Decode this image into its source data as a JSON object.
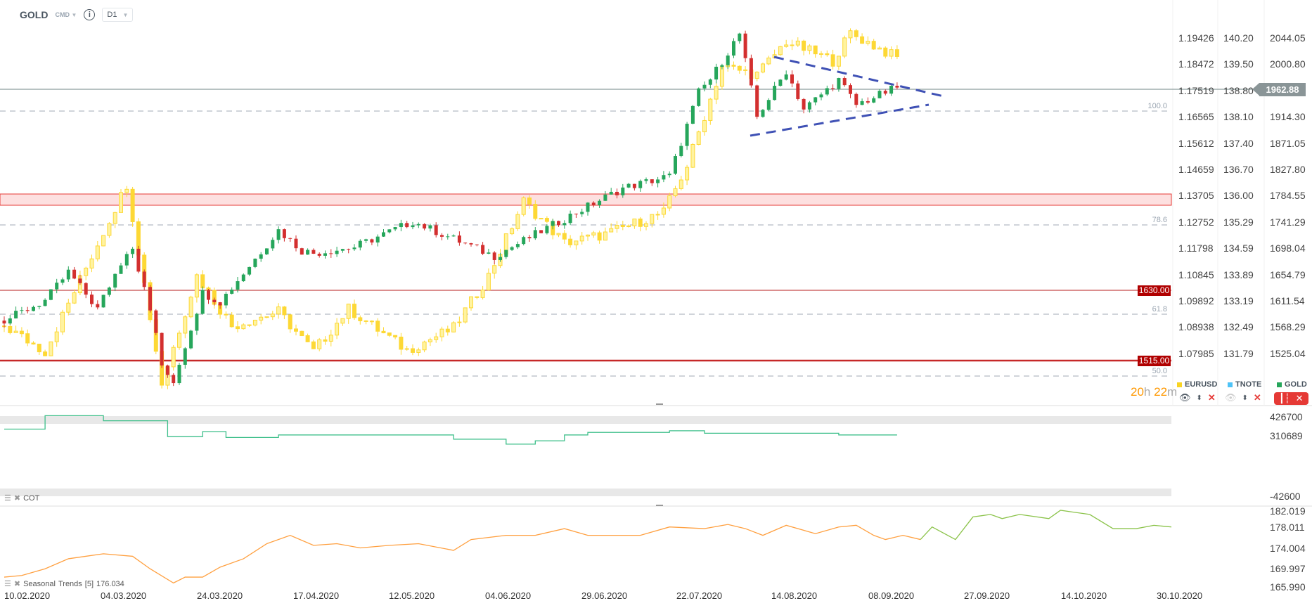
{
  "header": {
    "symbol": "GOLD",
    "market": "CMD",
    "info": "i",
    "timeframe": "D1"
  },
  "axes": {
    "eurusd": [
      "1.19426",
      "1.18472",
      "1.17519",
      "1.16565",
      "1.15612",
      "1.14659",
      "1.13705",
      "1.12752",
      "1.11798",
      "1.10845",
      "1.09892",
      "1.08938",
      "1.07985"
    ],
    "tnote": [
      "140.20",
      "139.50",
      "138.80",
      "138.10",
      "137.40",
      "136.70",
      "136.00",
      "135.29",
      "134.59",
      "133.89",
      "133.19",
      "132.49",
      "131.79"
    ],
    "gold": [
      "2044.05",
      "2000.80",
      "",
      "1914.30",
      "1871.05",
      "1827.80",
      "1784.55",
      "1741.29",
      "1698.04",
      "1654.79",
      "1611.54",
      "1568.29",
      "1525.04"
    ],
    "current_price": "1962.88",
    "cot": [
      "426700",
      "310689",
      "-42600"
    ],
    "seasonal": [
      "182.019",
      "178.011",
      "174.004",
      "169.997",
      "165.990"
    ]
  },
  "levels": {
    "l1630": "1630.00",
    "l1515": "1515.00",
    "fib100": "100.0",
    "fib786": "78.6",
    "fib618": "61.8",
    "fib50": "50.0"
  },
  "timer": {
    "hours": "20",
    "h": "h",
    "minutes": "22",
    "m": "m"
  },
  "legend": [
    {
      "name": "EURUSD",
      "color": "#f9d423"
    },
    {
      "name": "TNOTE",
      "color": "#4fc3f7"
    },
    {
      "name": "GOLD",
      "color": "#26a65b"
    }
  ],
  "panels": {
    "cot_label": "COT",
    "seasonal_label": "Seasonal",
    "seasonal_name": "Trends",
    "seasonal_param": "[5]",
    "seasonal_value": "176.034"
  },
  "dates": [
    "10.02.2020",
    "04.03.2020",
    "24.03.2020",
    "17.04.2020",
    "12.05.2020",
    "04.06.2020",
    "29.06.2020",
    "22.07.2020",
    "14.08.2020",
    "08.09.2020",
    "27.09.2020",
    "14.10.2020",
    "30.10.2020"
  ],
  "colors": {
    "up": "#26a65b",
    "down": "#d32f2f",
    "eurusd": "#fdd835",
    "seasonal_hist": "#ffa040",
    "seasonal_fwd": "#8bc34a",
    "cot": "#3dbf8a",
    "trend": "#3f51b5"
  },
  "chart_data": {
    "type": "candlestick",
    "x_unit": "trading day index from 10.02.2020",
    "gold_close_keypoints": [
      [
        0,
        1579
      ],
      [
        7,
        1612
      ],
      [
        11,
        1659
      ],
      [
        16,
        1598
      ],
      [
        21,
        1694
      ],
      [
        22,
        1700
      ],
      [
        26,
        1560
      ],
      [
        27,
        1500
      ],
      [
        29,
        1480
      ],
      [
        34,
        1625
      ],
      [
        37,
        1610
      ],
      [
        47,
        1728
      ],
      [
        51,
        1694
      ],
      [
        53,
        1690
      ],
      [
        60,
        1700
      ],
      [
        70,
        1742
      ],
      [
        84,
        1685
      ],
      [
        99,
        1762
      ],
      [
        106,
        1797
      ],
      [
        114,
        1817
      ],
      [
        119,
        1955
      ],
      [
        121,
        1976
      ],
      [
        126,
        2051
      ],
      [
        129,
        1914
      ],
      [
        134,
        1990
      ],
      [
        137,
        1927
      ],
      [
        143,
        1975
      ],
      [
        146,
        1934
      ],
      [
        153,
        1962.88
      ]
    ],
    "eurusd_close_keypoints": [
      [
        0,
        1.0898
      ],
      [
        7,
        1.0805
      ],
      [
        21,
        1.1413
      ],
      [
        27,
        1.069
      ],
      [
        33,
        1.108
      ],
      [
        39,
        1.0898
      ],
      [
        47,
        1.095
      ],
      [
        53,
        1.0805
      ],
      [
        59,
        1.096
      ],
      [
        69,
        1.081
      ],
      [
        77,
        1.089
      ],
      [
        83,
        1.108
      ],
      [
        89,
        1.135
      ],
      [
        96,
        1.12
      ],
      [
        103,
        1.123
      ],
      [
        113,
        1.131
      ],
      [
        117,
        1.148
      ],
      [
        123,
        1.184
      ],
      [
        129,
        1.181
      ],
      [
        134,
        1.193
      ],
      [
        142,
        1.186
      ],
      [
        145,
        1.196
      ],
      [
        153,
        1.187
      ]
    ],
    "cot_steps": [
      [
        0,
        351500
      ],
      [
        7,
        433570
      ],
      [
        17,
        402640
      ],
      [
        28,
        305530
      ],
      [
        34,
        336460
      ],
      [
        38,
        300360
      ],
      [
        47,
        315830
      ],
      [
        77,
        290060
      ],
      [
        86,
        259550
      ],
      [
        91,
        280170
      ],
      [
        96,
        315830
      ],
      [
        100,
        331310
      ],
      [
        114,
        341190
      ],
      [
        120,
        326150
      ],
      [
        143,
        315830
      ],
      [
        153,
        315830
      ]
    ],
    "seasonal_hist": [
      [
        0,
        168.06
      ],
      [
        3,
        168.41
      ],
      [
        7,
        169.82
      ],
      [
        11,
        171.94
      ],
      [
        17,
        172.99
      ],
      [
        22,
        172.46
      ],
      [
        25,
        169.82
      ],
      [
        29,
        166.83
      ],
      [
        31,
        168.06
      ],
      [
        34,
        168.06
      ],
      [
        37,
        170.17
      ],
      [
        41,
        171.94
      ],
      [
        45,
        175.12
      ],
      [
        49,
        176.88
      ],
      [
        53,
        174.77
      ],
      [
        57,
        175.12
      ],
      [
        61,
        174.23
      ],
      [
        66,
        174.77
      ],
      [
        71,
        175.12
      ],
      [
        77,
        173.71
      ],
      [
        80,
        176.0
      ],
      [
        86,
        176.88
      ],
      [
        91,
        176.88
      ],
      [
        96,
        178.3
      ],
      [
        100,
        176.88
      ],
      [
        109,
        176.88
      ],
      [
        114,
        178.65
      ],
      [
        120,
        178.3
      ],
      [
        124,
        179.18
      ],
      [
        127,
        178.3
      ],
      [
        130,
        176.88
      ],
      [
        134,
        179.0
      ],
      [
        139,
        177.24
      ],
      [
        143,
        178.65
      ],
      [
        146,
        179.0
      ],
      [
        149,
        176.88
      ],
      [
        151,
        176.0
      ],
      [
        154,
        176.88
      ],
      [
        157,
        176.0
      ]
    ],
    "seasonal_fwd": [
      [
        157,
        176.0
      ],
      [
        159,
        178.65
      ],
      [
        163,
        176.0
      ],
      [
        166,
        180.77
      ],
      [
        169,
        181.29
      ],
      [
        171,
        180.42
      ],
      [
        174,
        181.29
      ],
      [
        179,
        180.42
      ],
      [
        181,
        182.17
      ],
      [
        186,
        181.29
      ],
      [
        190,
        178.3
      ],
      [
        194,
        178.3
      ],
      [
        197,
        179.0
      ],
      [
        200,
        178.65
      ]
    ]
  }
}
